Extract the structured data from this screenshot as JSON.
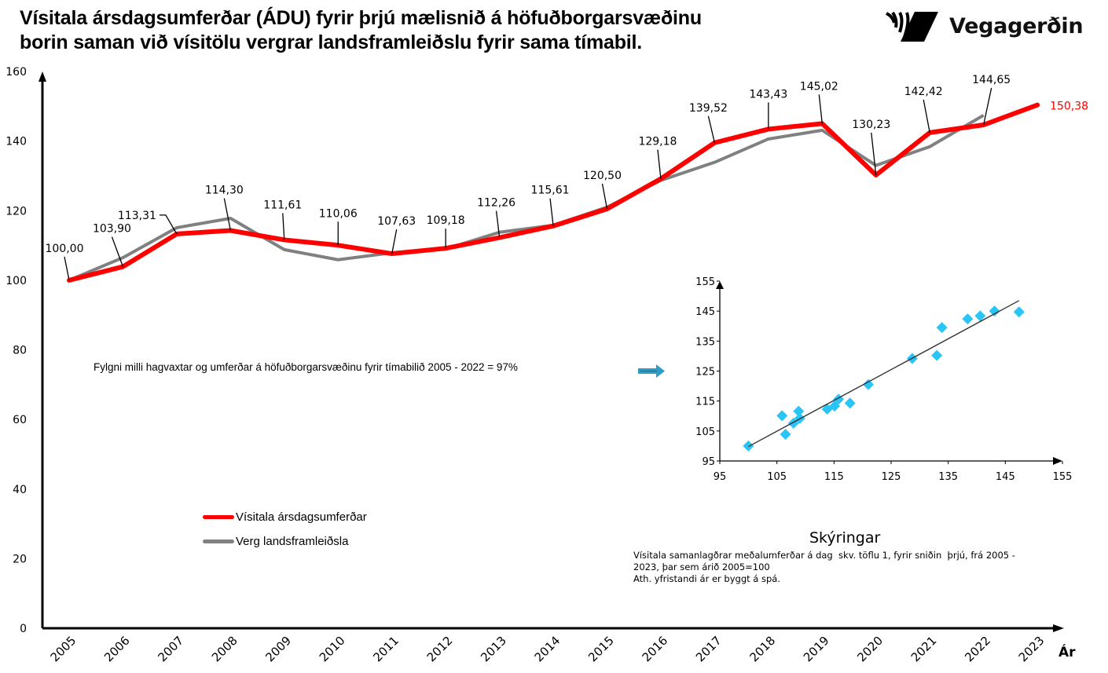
{
  "header": {
    "title_line1": "Vísitala ársdagsumferðar (ÁDU) fyrir þrjú mælisnið á höfuðborgarsvæðinu",
    "title_line2": "borin saman við vísitölu vergrar landsframleiðslu fyrir sama tímabil.",
    "logo_text": "Vegagerðin",
    "logo_icon": "vegagerdin-logo-icon"
  },
  "colors": {
    "traffic": "#ff0000",
    "gdp": "#808080",
    "scatter_points": "#29c5f6",
    "arrow": "#2e9cc4",
    "last_label": "#ff0000"
  },
  "correlation_text": "Fylgni milli hagvaxtar og umferðar á höfuðborgarsvæðinu fyrir tímabilið 2005 - 2022 = 97%",
  "legend": [
    {
      "label": "Vísitala ársdagsumferðar",
      "color": "#ff0000"
    },
    {
      "label": "Verg landsframleiðsla",
      "color": "#808080"
    }
  ],
  "notes": {
    "title": "Skýringar",
    "lines": [
      "Vísitala samanlagðrar meðalumferðar á dag  skv. töflu 1, fyrir sniðin  þrjú, frá 2005 -",
      "2023, þar sem árið 2005=100",
      "Ath. yfristandi ár er byggt á spá."
    ]
  },
  "chart_data": [
    {
      "type": "line",
      "title": "Vísitala ársdagsumferðar (ÁDU) fyrir þrjú mælisnið á höfuðborgarsvæðinu borin saman við vísitölu vergrar landsframleiðslu fyrir sama tímabil.",
      "xlabel": "Ár",
      "ylabel": "",
      "ylim": [
        0,
        160
      ],
      "yticks": [
        "0",
        "20",
        "40",
        "60",
        "80",
        "100",
        "120",
        "140",
        "160"
      ],
      "x": [
        "2005",
        "2006",
        "2007",
        "2008",
        "2009",
        "2010",
        "2011",
        "2012",
        "2013",
        "2014",
        "2015",
        "2016",
        "2017",
        "2018",
        "2019",
        "2020",
        "2021",
        "2022",
        "2023"
      ],
      "grid": false,
      "legend_position": "bottom-left",
      "series": [
        {
          "name": "Vísitala ársdagsumferðar",
          "values": [
            100.0,
            103.9,
            113.31,
            114.3,
            111.61,
            110.06,
            107.63,
            109.18,
            112.26,
            115.61,
            120.5,
            129.18,
            139.52,
            143.43,
            145.02,
            130.23,
            142.42,
            144.65,
            150.38
          ],
          "labels": [
            "100,00",
            "103,90",
            "113,31",
            "114,30",
            "111,61",
            "110,06",
            "107,63",
            "109,18",
            "112,26",
            "115,61",
            "120,50",
            "129,18",
            "139,52",
            "143,43",
            "145,02",
            "130,23",
            "142,42",
            "144,65",
            "150,38"
          ]
        },
        {
          "name": "Verg landsframleiðsla",
          "values": [
            100.0,
            106.5,
            115.1,
            117.8,
            108.8,
            105.9,
            107.9,
            109.0,
            113.8,
            115.8,
            121.0,
            128.7,
            133.9,
            140.6,
            143.1,
            133.0,
            138.4,
            147.4
          ]
        }
      ]
    },
    {
      "type": "scatter",
      "title": "",
      "xlabel": "",
      "ylabel": "",
      "xlim": [
        95,
        155
      ],
      "ylim": [
        95,
        155
      ],
      "xticks": [
        "95",
        "105",
        "115",
        "125",
        "135",
        "145",
        "155"
      ],
      "yticks": [
        "95",
        "105",
        "115",
        "125",
        "135",
        "145",
        "155"
      ],
      "grid": false,
      "points": [
        [
          100.0,
          100.0
        ],
        [
          105.9,
          110.1
        ],
        [
          106.5,
          103.9
        ],
        [
          107.9,
          107.6
        ],
        [
          108.8,
          111.6
        ],
        [
          109.0,
          109.2
        ],
        [
          113.8,
          112.3
        ],
        [
          115.1,
          113.3
        ],
        [
          115.8,
          115.6
        ],
        [
          117.8,
          114.3
        ],
        [
          121.0,
          120.5
        ],
        [
          128.7,
          129.2
        ],
        [
          133.0,
          130.2
        ],
        [
          133.9,
          139.5
        ],
        [
          138.4,
          142.4
        ],
        [
          140.6,
          143.4
        ],
        [
          143.1,
          145.0
        ],
        [
          147.4,
          144.7
        ]
      ],
      "trendline": [
        [
          100.0,
          99.8
        ],
        [
          147.4,
          148.5
        ]
      ]
    }
  ]
}
